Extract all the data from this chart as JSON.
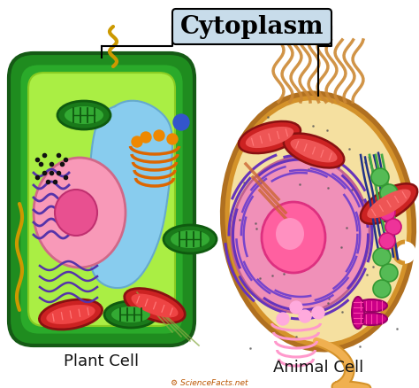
{
  "title": "Cytoplasm",
  "plant_cell_label": "Plant Cell",
  "animal_cell_label": "Animal Cell",
  "watermark": "ScienceFacts.net",
  "bg_color": "#ffffff",
  "title_bg": "#c8dcea",
  "title_border": "#000000",
  "title_fontsize": 20,
  "label_fontsize": 13
}
